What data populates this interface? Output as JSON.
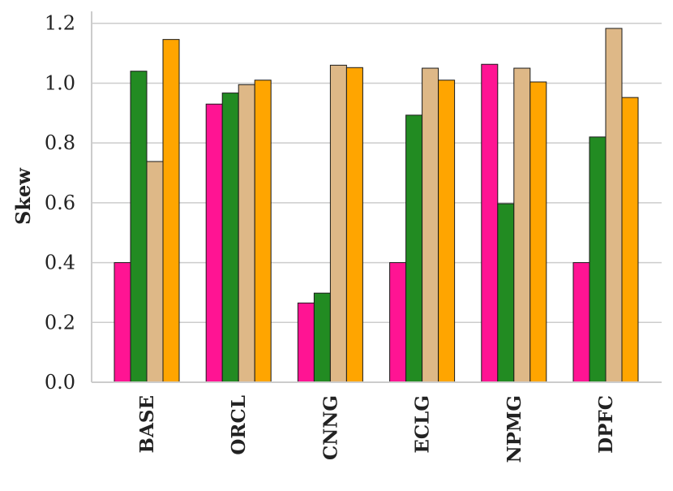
{
  "chart_data": {
    "type": "bar",
    "title": "",
    "xlabel": "",
    "ylabel": "Skew",
    "ylim": [
      0,
      1.24
    ],
    "yticks": [
      "0.0",
      "0.2",
      "0.4",
      "0.6",
      "0.8",
      "1.0",
      "1.2"
    ],
    "ytick_values": [
      0.0,
      0.2,
      0.4,
      0.6,
      0.8,
      1.0,
      1.2
    ],
    "grid": "horizontal",
    "legend": "none",
    "categories": [
      "BASE",
      "ORCL",
      "CNNG",
      "ECLG",
      "NPMG",
      "DPFC"
    ],
    "series": [
      {
        "color": "#ff1493",
        "values": [
          0.4,
          0.93,
          0.265,
          0.4,
          1.063,
          0.4
        ]
      },
      {
        "color": "#228b22",
        "values": [
          1.04,
          0.967,
          0.298,
          0.893,
          0.597,
          0.82
        ]
      },
      {
        "color": "#deb887",
        "values": [
          0.738,
          0.995,
          1.06,
          1.05,
          1.05,
          1.183
        ]
      },
      {
        "color": "#ffa500",
        "values": [
          1.146,
          1.01,
          1.052,
          1.01,
          1.004,
          0.952
        ]
      }
    ]
  }
}
